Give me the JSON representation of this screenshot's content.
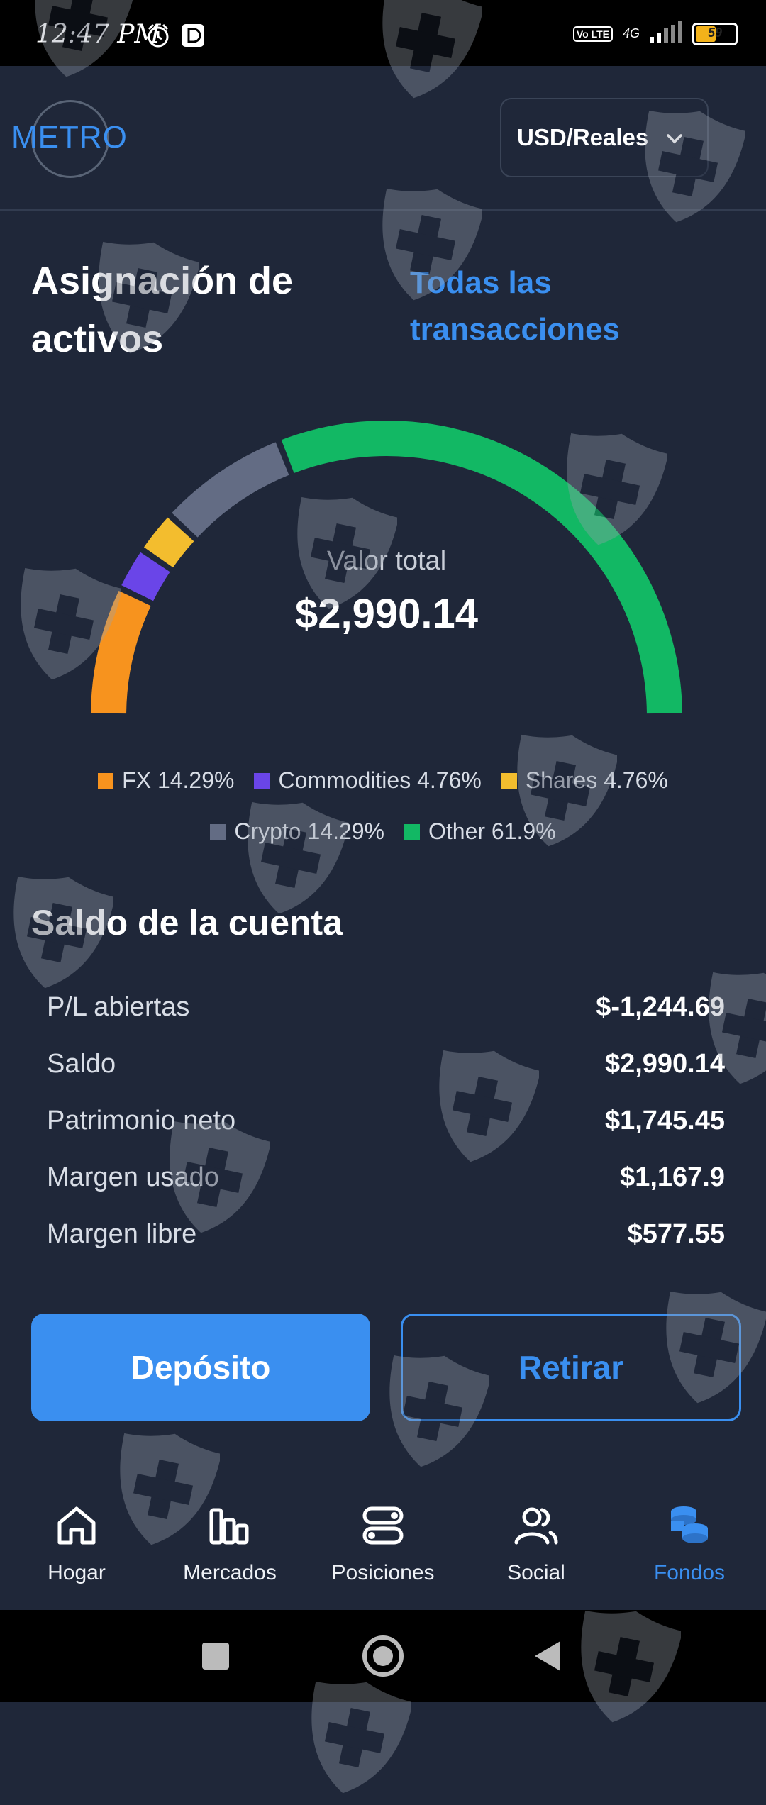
{
  "status_bar": {
    "time": "12:47 PM",
    "network": "4G",
    "volte": "Vo LTE",
    "battery": "59",
    "battery_level": 59
  },
  "header": {
    "logo": "METRO",
    "currency": "USD/Reales"
  },
  "allocation": {
    "title": "Asignación de activos",
    "all_transactions_link": "Todas las transacciones",
    "total_label": "Valor total",
    "total_value": "$2,990.14",
    "segments": [
      {
        "name": "FX",
        "percent": 14.29,
        "label": "14.29%",
        "color": "#f7931e"
      },
      {
        "name": "Commodities",
        "percent": 4.76,
        "label": "4.76%",
        "color": "#6a45e8"
      },
      {
        "name": "Shares",
        "percent": 4.76,
        "label": "4.76%",
        "color": "#f3bd2e"
      },
      {
        "name": "Crypto",
        "percent": 14.29,
        "label": "14.29%",
        "color": "#636c84"
      },
      {
        "name": "Other",
        "percent": 61.9,
        "label": "61.9%",
        "color": "#12b864"
      }
    ]
  },
  "account": {
    "title": "Saldo de la cuenta",
    "rows": [
      {
        "label": "P/L abiertas",
        "value": "$-1,244.69"
      },
      {
        "label": "Saldo",
        "value": "$2,990.14"
      },
      {
        "label": "Patrimonio neto",
        "value": "$1,745.45"
      },
      {
        "label": "Margen usado",
        "value": "$1,167.9"
      },
      {
        "label": "Margen libre",
        "value": "$577.55"
      }
    ]
  },
  "actions": {
    "deposit": "Depósito",
    "withdraw": "Retirar"
  },
  "nav": {
    "items": [
      {
        "label": "Hogar",
        "icon": "home-icon"
      },
      {
        "label": "Mercados",
        "icon": "markets-icon"
      },
      {
        "label": "Posiciones",
        "icon": "positions-icon"
      },
      {
        "label": "Social",
        "icon": "social-icon"
      },
      {
        "label": "Fondos",
        "icon": "funds-icon"
      }
    ],
    "active_index": 4,
    "active_color": "#3a8ff0"
  }
}
